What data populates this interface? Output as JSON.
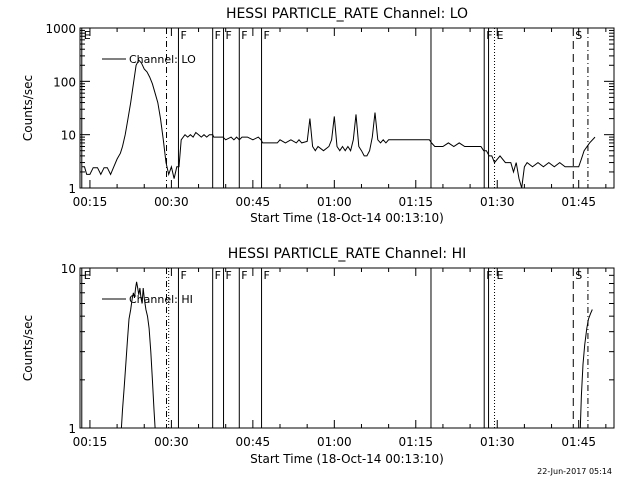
{
  "footer": {
    "timestamp": "22-Jun-2017 05:14"
  },
  "chart_data": [
    {
      "type": "line",
      "title": "HESSI PARTICLE_RATE Channel: LO",
      "xlabel": "Start Time (18-Oct-14 00:13:10)",
      "ylabel": "Counts/sec",
      "yscale": "log",
      "xlim": [
        13.17,
        111.5
      ],
      "ylim": [
        1,
        1000
      ],
      "grid": false,
      "legend": {
        "position": "top-left",
        "entries": [
          {
            "label": "Channel: LO"
          }
        ]
      },
      "x_ticks": [
        {
          "x": 15,
          "label": "00:15"
        },
        {
          "x": 30,
          "label": "00:30"
        },
        {
          "x": 45,
          "label": "00:45"
        },
        {
          "x": 60,
          "label": "01:00"
        },
        {
          "x": 75,
          "label": "01:15"
        },
        {
          "x": 90,
          "label": "01:30"
        },
        {
          "x": 105,
          "label": "01:45"
        }
      ],
      "y_ticks": [
        {
          "y": 1,
          "label": "1"
        },
        {
          "y": 10,
          "label": "10"
        },
        {
          "y": 100,
          "label": "100"
        },
        {
          "y": 1000,
          "label": "1000"
        }
      ],
      "markers": [
        {
          "x": 13.5,
          "label": "E",
          "style": "solid"
        },
        {
          "x": 29.1,
          "label": "",
          "style": "dashdot"
        },
        {
          "x": 31.3,
          "label": "F",
          "style": "solid"
        },
        {
          "x": 37.6,
          "label": "F",
          "style": "solid"
        },
        {
          "x": 39.6,
          "label": "F",
          "style": "solid"
        },
        {
          "x": 42.5,
          "label": "F",
          "style": "solid"
        },
        {
          "x": 46.6,
          "label": "F",
          "style": "solid"
        },
        {
          "x": 77.8,
          "label": "",
          "style": "solid"
        },
        {
          "x": 87.6,
          "label": "F",
          "style": "solid"
        },
        {
          "x": 88.4,
          "label": "",
          "style": "solid"
        },
        {
          "x": 89.5,
          "label": "E",
          "style": "dotted"
        },
        {
          "x": 104.0,
          "label": "S",
          "style": "dashed"
        },
        {
          "x": 106.7,
          "label": "",
          "style": "dashdot"
        }
      ],
      "series": [
        {
          "points": [
            [
              13.5,
              2.5
            ],
            [
              14.0,
              2.5
            ],
            [
              14.4,
              1.8
            ],
            [
              15.0,
              1.8
            ],
            [
              15.6,
              2.4
            ],
            [
              16.0,
              2.4
            ],
            [
              16.4,
              2.4
            ],
            [
              17.0,
              1.8
            ],
            [
              17.6,
              2.4
            ],
            [
              18.2,
              2.4
            ],
            [
              18.8,
              1.8
            ],
            [
              19.4,
              2.5
            ],
            [
              20.0,
              3.5
            ],
            [
              20.6,
              4.5
            ],
            [
              21.0,
              6
            ],
            [
              21.5,
              10
            ],
            [
              22.0,
              20
            ],
            [
              22.5,
              40
            ],
            [
              23.0,
              90
            ],
            [
              23.5,
              200
            ],
            [
              24.0,
              250
            ],
            [
              24.5,
              220
            ],
            [
              25.0,
              170
            ],
            [
              25.5,
              150
            ],
            [
              26.0,
              120
            ],
            [
              26.5,
              90
            ],
            [
              27.0,
              60
            ],
            [
              27.5,
              40
            ],
            [
              28.0,
              20
            ],
            [
              28.5,
              8
            ],
            [
              29.0,
              3
            ],
            [
              29.5,
              1.8
            ],
            [
              30.0,
              2.5
            ],
            [
              30.5,
              1.5
            ],
            [
              31.0,
              2.5
            ],
            [
              31.4,
              2.5
            ],
            [
              31.8,
              8
            ],
            [
              32.5,
              10
            ],
            [
              33.0,
              9
            ],
            [
              33.5,
              10
            ],
            [
              34.0,
              9
            ],
            [
              34.5,
              11
            ],
            [
              35.0,
              10
            ],
            [
              35.5,
              9
            ],
            [
              36.0,
              10
            ],
            [
              36.5,
              9
            ],
            [
              37.0,
              10
            ],
            [
              37.6,
              10
            ],
            [
              37.8,
              9
            ],
            [
              38.5,
              9
            ],
            [
              39.5,
              9
            ],
            [
              40.0,
              8
            ],
            [
              41.0,
              9
            ],
            [
              41.5,
              8
            ],
            [
              42.0,
              9
            ],
            [
              42.5,
              8
            ],
            [
              43.0,
              9
            ],
            [
              44.0,
              9
            ],
            [
              45.0,
              8
            ],
            [
              46.0,
              9
            ],
            [
              46.5,
              8
            ],
            [
              46.8,
              7
            ],
            [
              48.0,
              7
            ],
            [
              49.5,
              7
            ],
            [
              50.0,
              8
            ],
            [
              51.0,
              7
            ],
            [
              52.0,
              8
            ],
            [
              53.0,
              7
            ],
            [
              53.5,
              8
            ],
            [
              54.0,
              7
            ],
            [
              55.0,
              7.5
            ],
            [
              55.5,
              20
            ],
            [
              56.0,
              6
            ],
            [
              56.5,
              5
            ],
            [
              57.0,
              6
            ],
            [
              58.0,
              5
            ],
            [
              59.0,
              6
            ],
            [
              59.5,
              8
            ],
            [
              60.0,
              22
            ],
            [
              60.5,
              6
            ],
            [
              61.0,
              5
            ],
            [
              61.5,
              6
            ],
            [
              62.0,
              5
            ],
            [
              62.5,
              6
            ],
            [
              63.0,
              5
            ],
            [
              63.5,
              8
            ],
            [
              64.0,
              24
            ],
            [
              64.5,
              6
            ],
            [
              65.0,
              5
            ],
            [
              65.5,
              4
            ],
            [
              66.0,
              4
            ],
            [
              66.5,
              5
            ],
            [
              67.0,
              9
            ],
            [
              67.5,
              26
            ],
            [
              68.0,
              8
            ],
            [
              68.5,
              7
            ],
            [
              69.0,
              8
            ],
            [
              69.5,
              7
            ],
            [
              70.0,
              8
            ],
            [
              72.0,
              8
            ],
            [
              74.0,
              8
            ],
            [
              76.0,
              8
            ],
            [
              77.5,
              8
            ],
            [
              77.9,
              7
            ],
            [
              78.5,
              6
            ],
            [
              80.0,
              6
            ],
            [
              81.0,
              7
            ],
            [
              82.0,
              6
            ],
            [
              83.0,
              7
            ],
            [
              84.0,
              6
            ],
            [
              85.0,
              6
            ],
            [
              86.0,
              6
            ],
            [
              87.0,
              6
            ],
            [
              87.5,
              5
            ],
            [
              88.0,
              5
            ],
            [
              88.5,
              4
            ],
            [
              89.0,
              4
            ],
            [
              89.5,
              3
            ],
            [
              90.5,
              4
            ],
            [
              91.5,
              3
            ],
            [
              92.5,
              3
            ],
            [
              93.0,
              2
            ],
            [
              93.5,
              3
            ],
            [
              94.0,
              1.5
            ],
            [
              94.5,
              1
            ],
            [
              95.0,
              2.5
            ],
            [
              95.5,
              3
            ],
            [
              96.5,
              2.5
            ],
            [
              97.5,
              3
            ],
            [
              98.5,
              2.5
            ],
            [
              99.5,
              3
            ],
            [
              100.5,
              2.5
            ],
            [
              101.5,
              3
            ],
            [
              102.5,
              2.5
            ],
            [
              103.5,
              2.5
            ],
            [
              104.5,
              2.5
            ],
            [
              105.0,
              2.5
            ],
            [
              105.5,
              3.5
            ],
            [
              106.0,
              5
            ],
            [
              107.0,
              7
            ],
            [
              108.0,
              9
            ]
          ]
        }
      ]
    },
    {
      "type": "line",
      "title": "HESSI PARTICLE_RATE Channel: HI",
      "xlabel": "Start Time (18-Oct-14 00:13:10)",
      "ylabel": "Counts/sec",
      "yscale": "log",
      "xlim": [
        13.17,
        111.5
      ],
      "ylim": [
        1,
        10
      ],
      "grid": false,
      "legend": {
        "position": "top-left",
        "entries": [
          {
            "label": "Channel: HI"
          }
        ]
      },
      "x_ticks": [
        {
          "x": 15,
          "label": "00:15"
        },
        {
          "x": 30,
          "label": "00:30"
        },
        {
          "x": 45,
          "label": "00:45"
        },
        {
          "x": 60,
          "label": "01:00"
        },
        {
          "x": 75,
          "label": "01:15"
        },
        {
          "x": 90,
          "label": "01:30"
        },
        {
          "x": 105,
          "label": "01:45"
        }
      ],
      "y_ticks": [
        {
          "y": 1,
          "label": "1"
        },
        {
          "y": 10,
          "label": "10"
        }
      ],
      "markers": [
        {
          "x": 13.5,
          "label": "E",
          "style": "solid"
        },
        {
          "x": 29.1,
          "label": "",
          "style": "dashdot"
        },
        {
          "x": 29.5,
          "label": "",
          "style": "dotted"
        },
        {
          "x": 31.3,
          "label": "F",
          "style": "solid"
        },
        {
          "x": 37.6,
          "label": "F",
          "style": "solid"
        },
        {
          "x": 39.6,
          "label": "F",
          "style": "solid"
        },
        {
          "x": 42.5,
          "label": "F",
          "style": "solid"
        },
        {
          "x": 46.6,
          "label": "F",
          "style": "solid"
        },
        {
          "x": 77.8,
          "label": "",
          "style": "solid"
        },
        {
          "x": 87.6,
          "label": "F",
          "style": "solid"
        },
        {
          "x": 88.4,
          "label": "",
          "style": "solid"
        },
        {
          "x": 89.5,
          "label": "E",
          "style": "dotted"
        },
        {
          "x": 104.0,
          "label": "S",
          "style": "dashed"
        },
        {
          "x": 106.7,
          "label": "",
          "style": "dashdot"
        }
      ],
      "series": [
        {
          "points": [
            [
              20.8,
              1
            ],
            [
              21.0,
              1.3
            ],
            [
              21.3,
              1.8
            ],
            [
              21.6,
              2.5
            ],
            [
              21.9,
              3.5
            ],
            [
              22.2,
              4.8
            ],
            [
              22.5,
              5.5
            ],
            [
              22.8,
              6.5
            ],
            [
              23.0,
              7
            ],
            [
              23.2,
              6.5
            ],
            [
              23.4,
              7.5
            ],
            [
              23.6,
              8.2
            ],
            [
              23.8,
              7.5
            ],
            [
              24.0,
              6.8
            ],
            [
              24.2,
              7.5
            ],
            [
              24.4,
              6.5
            ],
            [
              24.6,
              6
            ],
            [
              24.8,
              7.5
            ],
            [
              25.0,
              6.5
            ],
            [
              25.3,
              5.5
            ],
            [
              25.6,
              5
            ],
            [
              25.9,
              4.2
            ],
            [
              26.2,
              3
            ],
            [
              26.5,
              2
            ],
            [
              26.8,
              1.3
            ],
            [
              27.0,
              1
            ]
          ]
        },
        {
          "points": [
            [
              105.3,
              1
            ],
            [
              105.5,
              1.6
            ],
            [
              105.8,
              2.5
            ],
            [
              106.1,
              3.3
            ],
            [
              106.5,
              4.2
            ],
            [
              106.8,
              4.8
            ],
            [
              107.2,
              5.2
            ],
            [
              107.5,
              5.5
            ]
          ]
        }
      ]
    }
  ]
}
